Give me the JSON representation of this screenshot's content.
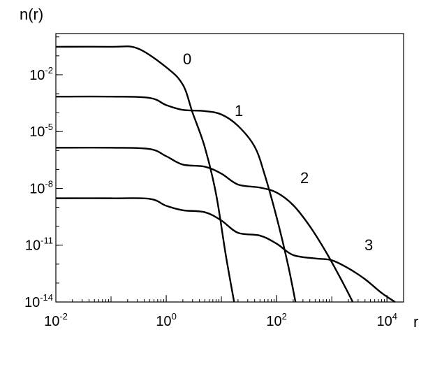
{
  "chart_data": {
    "type": "line",
    "xlabel": "r",
    "ylabel": "n(r)",
    "log_x": true,
    "log_y": true,
    "minor_ticks": true,
    "xlim": [
      0.01,
      20000
    ],
    "ylim": [
      1e-14,
      1.5
    ],
    "xticks": [
      {
        "value": 0.01,
        "label": "10",
        "exponent": "-2"
      },
      {
        "value": 1,
        "label": "10",
        "exponent": "0"
      },
      {
        "value": 100,
        "label": "10",
        "exponent": "2"
      },
      {
        "value": 10000,
        "label": "10",
        "exponent": "4"
      }
    ],
    "yticks": [
      {
        "value": 1e-14,
        "label": "10",
        "exponent": "-14"
      },
      {
        "value": 1e-11,
        "label": "10",
        "exponent": "-11"
      },
      {
        "value": 1e-08,
        "label": "10",
        "exponent": "-8"
      },
      {
        "value": 1e-05,
        "label": "10",
        "exponent": "-5"
      },
      {
        "value": 0.01,
        "label": "10",
        "exponent": "-2"
      }
    ],
    "series": [
      {
        "name": "0",
        "color": "#000000",
        "x": [
          0.01,
          0.1,
          0.3,
          1,
          2,
          3,
          5,
          8,
          12,
          17
        ],
        "values": [
          0.3,
          0.3,
          0.25,
          0.025,
          0.003,
          0.0001,
          1.5e-06,
          5e-09,
          3e-12,
          1e-14
        ]
      },
      {
        "name": "1",
        "color": "#000000",
        "x": [
          0.01,
          0.1,
          0.5,
          1,
          2,
          5,
          10,
          20,
          40,
          60,
          100,
          160,
          220
        ],
        "values": [
          0.0007,
          0.0007,
          0.0006,
          0.00025,
          0.00014,
          0.00012,
          8e-05,
          2e-05,
          1.6e-06,
          6e-08,
          3e-10,
          1e-12,
          1e-14
        ]
      },
      {
        "name": "2",
        "color": "#000000",
        "x": [
          0.01,
          0.1,
          0.5,
          1,
          2,
          5,
          10,
          20,
          50,
          100,
          200,
          400,
          800,
          1600,
          2400
        ],
        "values": [
          1.4e-06,
          1.4e-06,
          1.2e-06,
          5e-07,
          1.8e-07,
          1.4e-07,
          6e-08,
          1.6e-08,
          1.1e-08,
          6e-09,
          1.3e-09,
          1e-10,
          4e-12,
          1e-13,
          1e-14
        ]
      },
      {
        "name": "3",
        "color": "#000000",
        "x": [
          0.01,
          0.1,
          0.5,
          1,
          2,
          5,
          10,
          20,
          50,
          100,
          200,
          500,
          1000,
          2000,
          4000,
          8000,
          14000
        ],
        "values": [
          3e-09,
          3e-09,
          2.8e-09,
          1.2e-09,
          7e-10,
          5.5e-10,
          2e-10,
          4.5e-11,
          3.2e-11,
          1.2e-11,
          3e-12,
          2e-12,
          1.6e-12,
          6e-13,
          1.6e-13,
          3e-14,
          1e-14
        ]
      }
    ]
  }
}
